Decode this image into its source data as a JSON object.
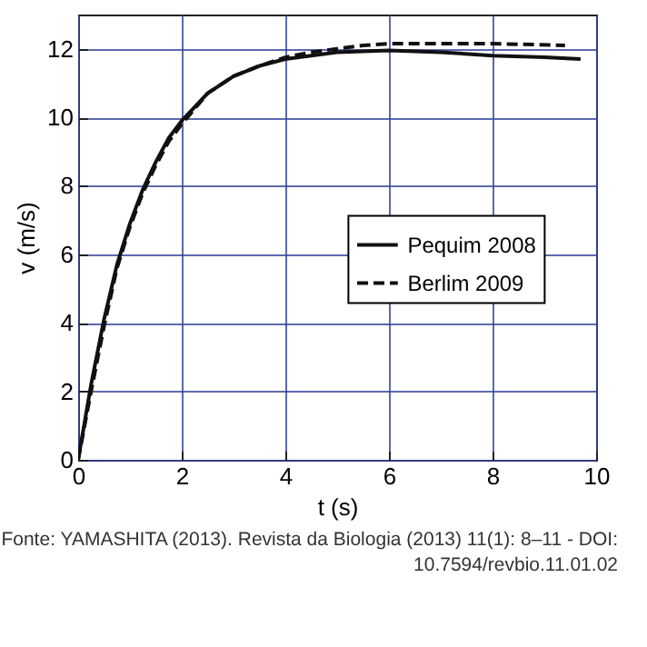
{
  "chart_data": {
    "type": "line",
    "xlabel": "t (s)",
    "ylabel": "v (m/s)",
    "xlim": [
      0,
      10
    ],
    "ylim": [
      0,
      13
    ],
    "xticks": [
      0,
      2,
      4,
      6,
      8,
      10
    ],
    "yticks": [
      0,
      2,
      4,
      6,
      8,
      10,
      12
    ],
    "grid": true,
    "legend": "right",
    "annotations": [
      "Fonte: YAMASHITA (2013). Revista da Biologia (2013) 11(1): 8–11 - DOI: 10.7594/revbio.11.01.02"
    ],
    "series": [
      {
        "name": "Pequim 2008",
        "color": "#111111",
        "line_style": "solid",
        "x": [
          0,
          0.25,
          0.5,
          0.75,
          1,
          1.25,
          1.5,
          1.75,
          2,
          2.5,
          3,
          3.5,
          4,
          4.5,
          5,
          6,
          7,
          8,
          9,
          9.7
        ],
        "values": [
          0,
          2.2,
          4.1,
          5.7,
          6.9,
          7.9,
          8.7,
          9.4,
          9.9,
          10.7,
          11.2,
          11.5,
          11.7,
          11.8,
          11.9,
          11.95,
          11.9,
          11.8,
          11.75,
          11.7
        ]
      },
      {
        "name": "Berlim 2009",
        "color": "#111111",
        "line_style": "dashed",
        "x": [
          0,
          0.25,
          0.5,
          0.75,
          1,
          1.25,
          1.5,
          1.75,
          2,
          2.5,
          3,
          3.5,
          4,
          4.5,
          5,
          5.5,
          6,
          7,
          8,
          9.4
        ],
        "values": [
          0,
          2,
          3.9,
          5.6,
          6.8,
          7.8,
          8.6,
          9.3,
          9.8,
          10.7,
          11.2,
          11.5,
          11.75,
          11.9,
          12,
          12.1,
          12.15,
          12.15,
          12.15,
          12.1
        ]
      }
    ]
  }
}
